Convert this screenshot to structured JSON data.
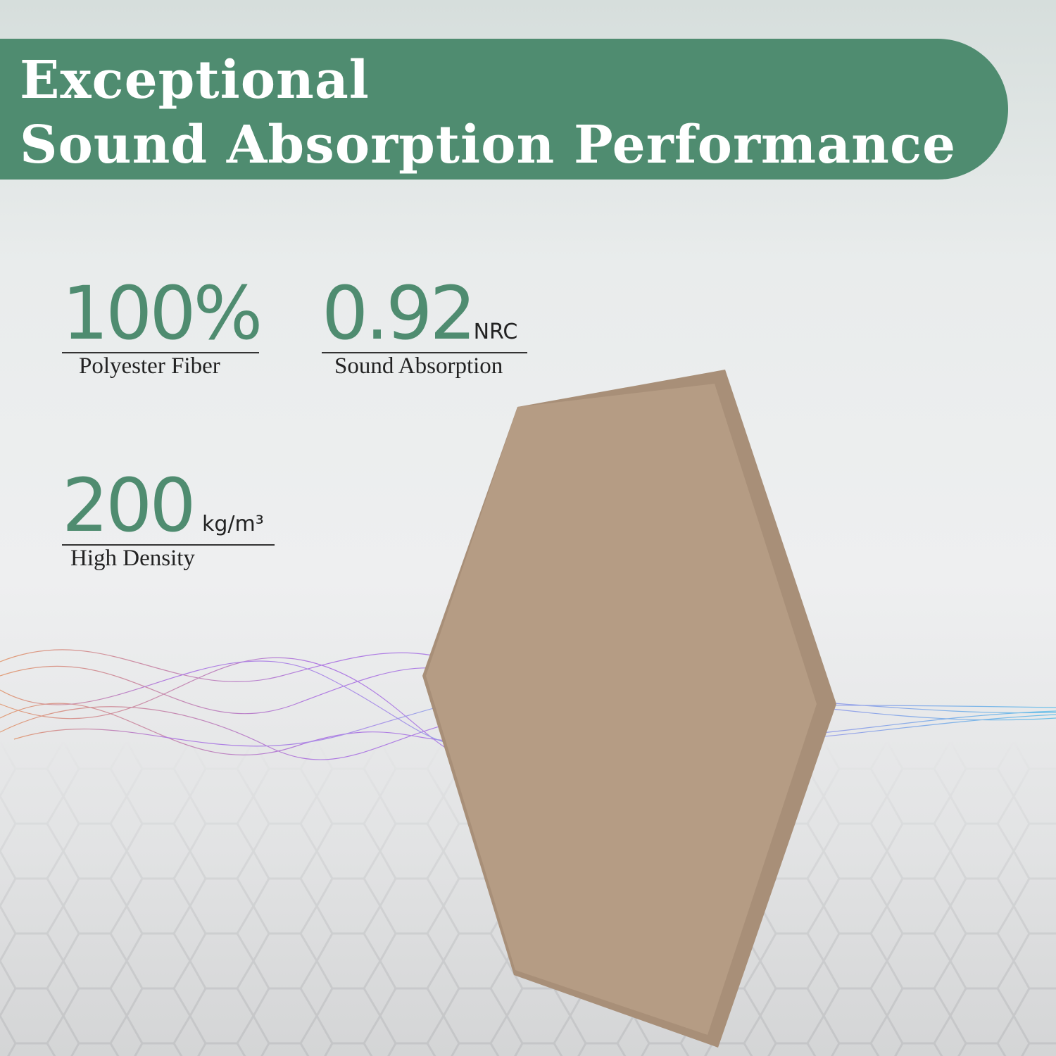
{
  "header": {
    "title_line1": "Exceptional",
    "title_line2": "Sound Absorption Performance"
  },
  "stats": [
    {
      "value": "100%",
      "unit": "",
      "caption": "Polyester Fiber"
    },
    {
      "value": "0.92",
      "unit": "NRC",
      "caption": "Sound Absorption"
    },
    {
      "value": "200",
      "unit": "kg/m³",
      "caption": "High Density"
    }
  ],
  "colors": {
    "accent": "#4f8c70",
    "panel": "#b59c84"
  }
}
